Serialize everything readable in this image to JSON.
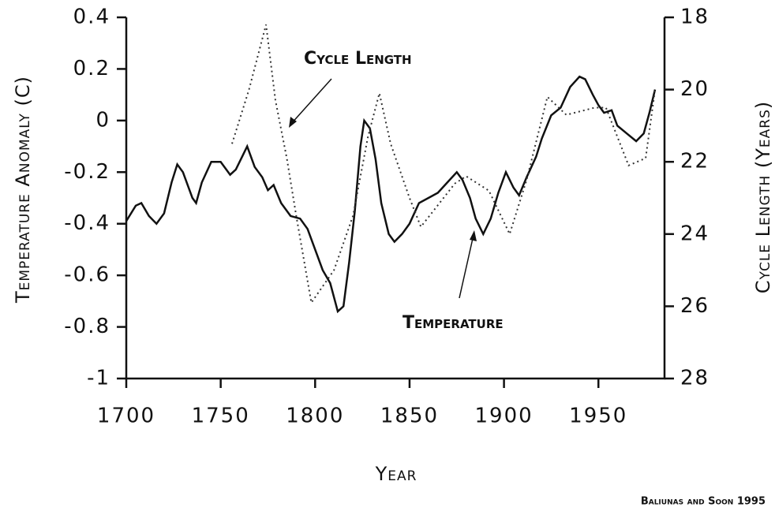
{
  "chart_data": {
    "type": "line",
    "xlabel": "Year",
    "ylabel": "Temperature Anomaly (C)",
    "y2label": "Cycle Length (Years)",
    "annotations": [
      "Cycle Length",
      "Temperature"
    ],
    "credit": "Baliunas and Soon 1995",
    "xlim": [
      1700,
      1985
    ],
    "xticks": [
      1700,
      1750,
      1800,
      1850,
      1900,
      1950
    ],
    "ylim": [
      -1,
      0.4
    ],
    "yticks": [
      0.4,
      0.2,
      0,
      -0.2,
      -0.4,
      -0.6,
      -0.8,
      -1
    ],
    "y2lim": [
      28,
      18
    ],
    "y2ticks": [
      18,
      20,
      22,
      24,
      26,
      28
    ],
    "series": [
      {
        "name": "Temperature",
        "color": "#111111",
        "style": "solid",
        "x": [
          1700,
          1705,
          1708,
          1712,
          1716,
          1720,
          1724,
          1727,
          1730,
          1735,
          1737,
          1740,
          1745,
          1750,
          1755,
          1758,
          1762,
          1764,
          1768,
          1772,
          1775,
          1778,
          1782,
          1787,
          1792,
          1796,
          1800,
          1804,
          1808,
          1812,
          1815,
          1818,
          1821,
          1824,
          1826,
          1829,
          1832,
          1835,
          1839,
          1842,
          1846,
          1850,
          1855,
          1860,
          1865,
          1870,
          1875,
          1878,
          1882,
          1885,
          1889,
          1893,
          1897,
          1901,
          1905,
          1908,
          1912,
          1917,
          1920,
          1925,
          1930,
          1935,
          1940,
          1943,
          1947,
          1950,
          1953,
          1957,
          1960,
          1965,
          1970,
          1974,
          1977,
          1980
        ],
        "values": [
          -0.39,
          -0.33,
          -0.32,
          -0.37,
          -0.4,
          -0.36,
          -0.24,
          -0.17,
          -0.2,
          -0.3,
          -0.32,
          -0.24,
          -0.16,
          -0.16,
          -0.21,
          -0.19,
          -0.13,
          -0.1,
          -0.18,
          -0.22,
          -0.27,
          -0.25,
          -0.32,
          -0.37,
          -0.38,
          -0.42,
          -0.5,
          -0.58,
          -0.63,
          -0.74,
          -0.72,
          -0.55,
          -0.35,
          -0.1,
          0,
          -0.03,
          -0.15,
          -0.32,
          -0.44,
          -0.47,
          -0.44,
          -0.4,
          -0.32,
          -0.3,
          -0.28,
          -0.24,
          -0.2,
          -0.23,
          -0.3,
          -0.38,
          -0.44,
          -0.38,
          -0.28,
          -0.2,
          -0.26,
          -0.29,
          -0.22,
          -0.14,
          -0.07,
          0.02,
          0.05,
          0.13,
          0.17,
          0.16,
          0.1,
          0.06,
          0.03,
          0.04,
          -0.02,
          -0.05,
          -0.08,
          -0.05,
          0.03,
          0.12
        ]
      },
      {
        "name": "Cycle Length",
        "color": "#333333",
        "style": "dotted",
        "axis": "y2",
        "x": [
          1756,
          1765,
          1774,
          1779,
          1785,
          1790,
          1798,
          1810,
          1820,
          1828,
          1834,
          1840,
          1850,
          1856,
          1865,
          1874,
          1880,
          1892,
          1903,
          1912,
          1923,
          1933,
          1948,
          1954,
          1966,
          1975,
          1980
        ],
        "values": [
          21.5,
          20,
          18.2,
          20.3,
          21.9,
          23.5,
          25.9,
          25,
          23.5,
          21.3,
          20.1,
          21.5,
          23,
          23.8,
          23.2,
          22.6,
          22.4,
          22.8,
          24,
          22.5,
          20.2,
          20.7,
          20.5,
          20.5,
          22.1,
          21.9,
          20
        ]
      }
    ]
  }
}
